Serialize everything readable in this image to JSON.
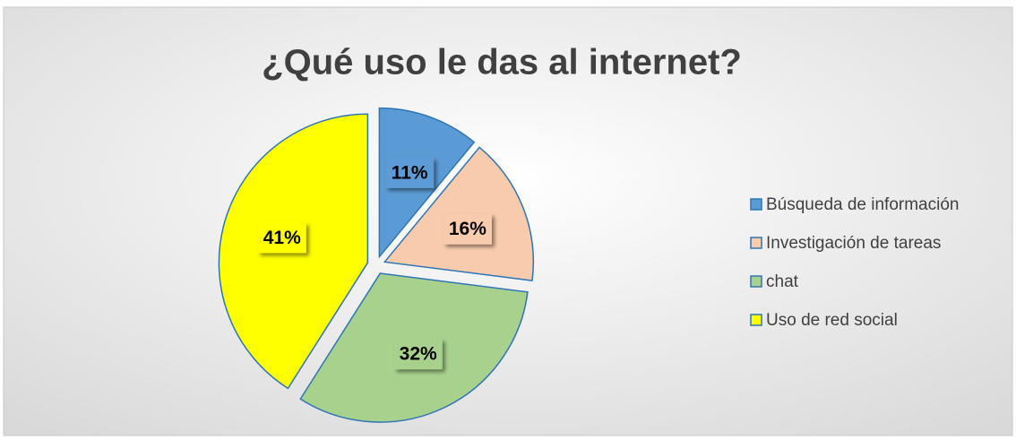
{
  "chart_data": {
    "type": "pie",
    "title": "¿Qué uso le das al internet?",
    "categories": [
      "Búsqueda de información",
      "Investigación de tareas",
      "chat",
      "Uso de red social"
    ],
    "values": [
      11,
      16,
      32,
      41
    ],
    "value_labels": [
      "11%",
      "16%",
      "32%",
      "41%"
    ],
    "colors": [
      "#5b9bd5",
      "#f8cbad",
      "#a9d18e",
      "#ffff00"
    ],
    "legend": "right"
  }
}
